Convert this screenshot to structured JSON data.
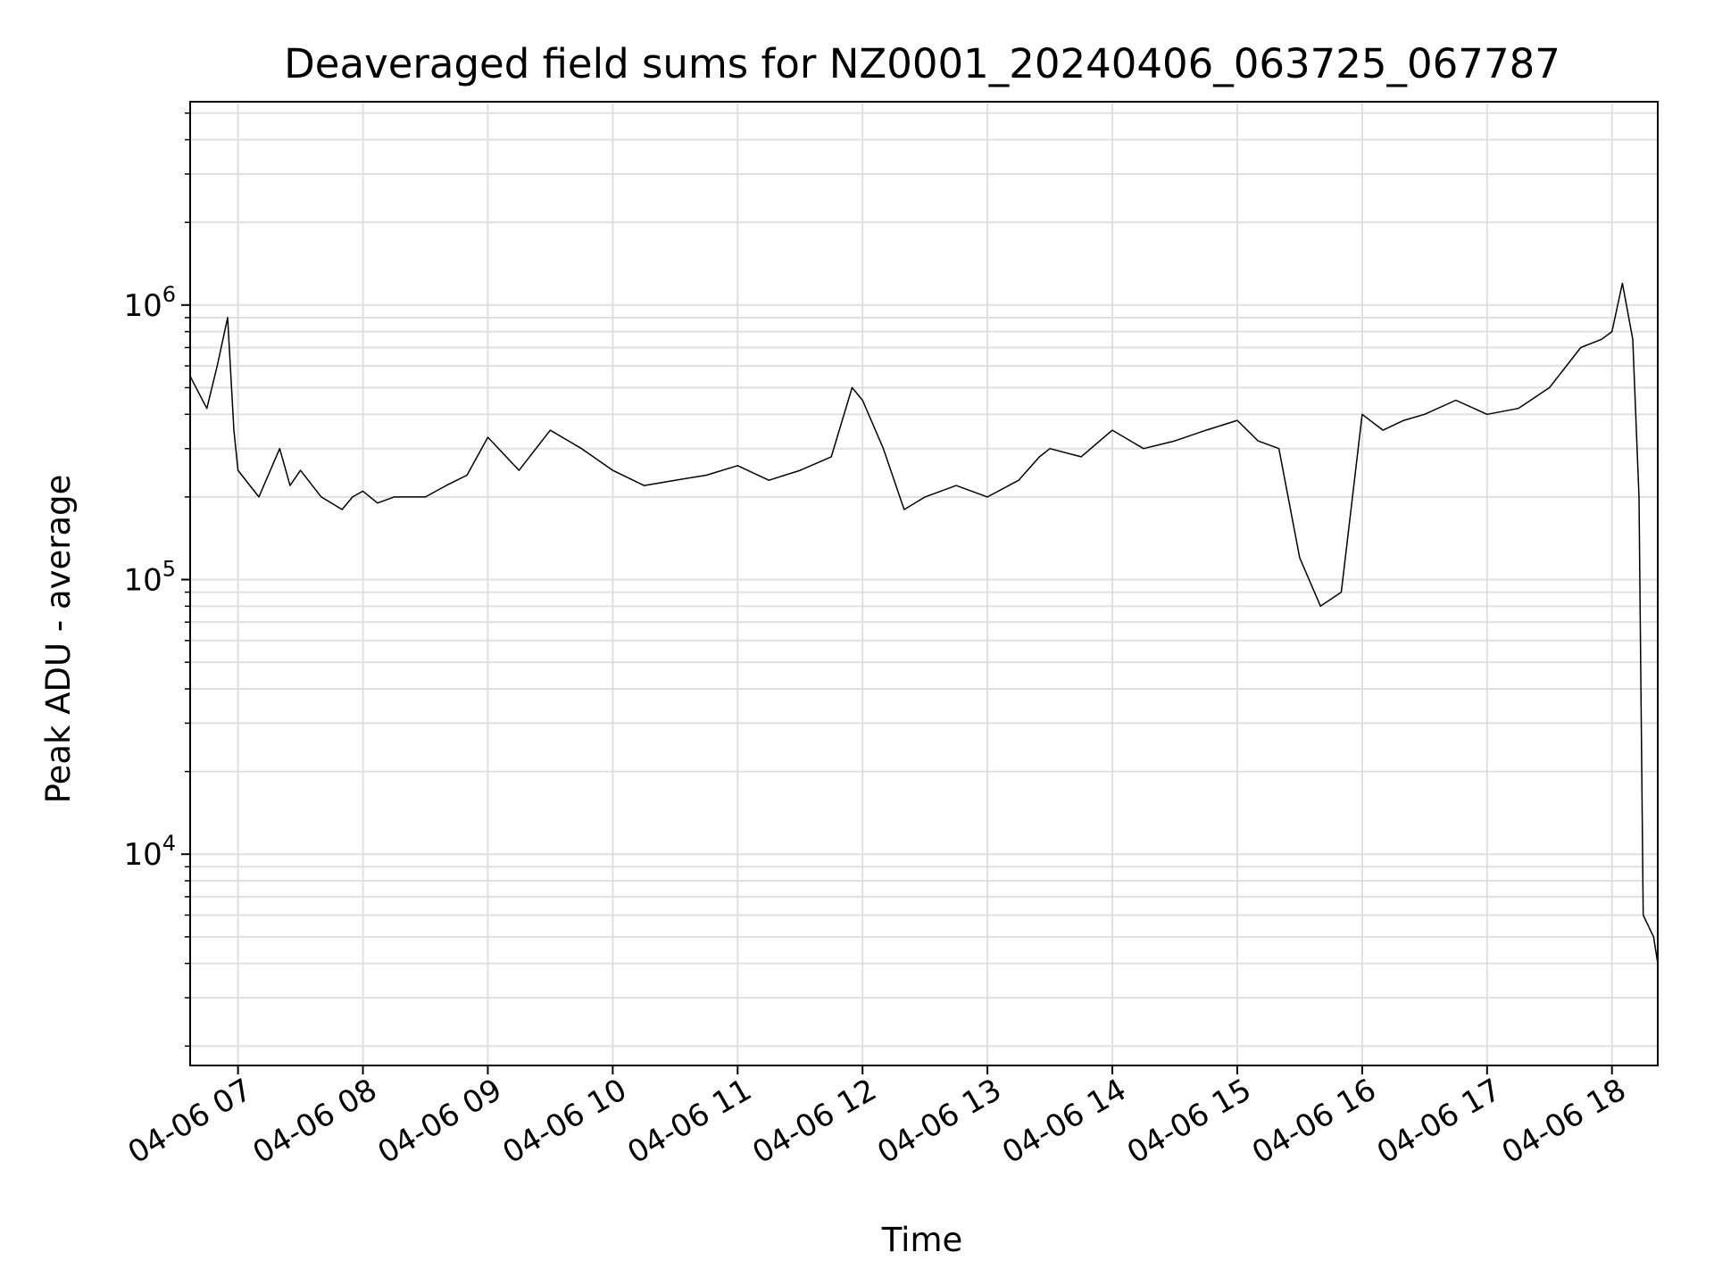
{
  "chart_data": {
    "type": "line",
    "title": "Deaveraged field sums for NZ0001_20240406_063725_067787",
    "xlabel": "Time",
    "ylabel": "Peak ADU - average",
    "yscale": "log",
    "grid": true,
    "legend": "none",
    "line_color": "#000000",
    "xlim": [
      "2024-04-06 06:37",
      "2024-04-06 18:22"
    ],
    "ylim": [
      1700,
      5500000
    ],
    "xticks": [
      {
        "value": "2024-04-06 07:00",
        "label": "04-06 07"
      },
      {
        "value": "2024-04-06 08:00",
        "label": "04-06 08"
      },
      {
        "value": "2024-04-06 09:00",
        "label": "04-06 09"
      },
      {
        "value": "2024-04-06 10:00",
        "label": "04-06 10"
      },
      {
        "value": "2024-04-06 11:00",
        "label": "04-06 11"
      },
      {
        "value": "2024-04-06 12:00",
        "label": "04-06 12"
      },
      {
        "value": "2024-04-06 13:00",
        "label": "04-06 13"
      },
      {
        "value": "2024-04-06 14:00",
        "label": "04-06 14"
      },
      {
        "value": "2024-04-06 15:00",
        "label": "04-06 15"
      },
      {
        "value": "2024-04-06 16:00",
        "label": "04-06 16"
      },
      {
        "value": "2024-04-06 17:00",
        "label": "04-06 17"
      },
      {
        "value": "2024-04-06 18:00",
        "label": "04-06 18"
      }
    ],
    "yticks": [
      {
        "value": 10000,
        "base": "10",
        "exp": "4"
      },
      {
        "value": 100000,
        "base": "10",
        "exp": "5"
      },
      {
        "value": 1000000,
        "base": "10",
        "exp": "6"
      }
    ],
    "series": [
      {
        "x": [
          "2024-04-06 06:37",
          "2024-04-06 06:45",
          "2024-04-06 06:50",
          "2024-04-06 06:55",
          "2024-04-06 06:58",
          "2024-04-06 07:00",
          "2024-04-06 07:10",
          "2024-04-06 07:20",
          "2024-04-06 07:25",
          "2024-04-06 07:30",
          "2024-04-06 07:40",
          "2024-04-06 07:50",
          "2024-04-06 07:55",
          "2024-04-06 08:00",
          "2024-04-06 08:07",
          "2024-04-06 08:15",
          "2024-04-06 08:30",
          "2024-04-06 08:40",
          "2024-04-06 08:50",
          "2024-04-06 09:00",
          "2024-04-06 09:15",
          "2024-04-06 09:30",
          "2024-04-06 09:45",
          "2024-04-06 10:00",
          "2024-04-06 10:15",
          "2024-04-06 10:30",
          "2024-04-06 10:45",
          "2024-04-06 11:00",
          "2024-04-06 11:15",
          "2024-04-06 11:30",
          "2024-04-06 11:45",
          "2024-04-06 11:55",
          "2024-04-06 12:00",
          "2024-04-06 12:10",
          "2024-04-06 12:20",
          "2024-04-06 12:30",
          "2024-04-06 12:45",
          "2024-04-06 13:00",
          "2024-04-06 13:15",
          "2024-04-06 13:25",
          "2024-04-06 13:30",
          "2024-04-06 13:45",
          "2024-04-06 14:00",
          "2024-04-06 14:15",
          "2024-04-06 14:30",
          "2024-04-06 14:45",
          "2024-04-06 15:00",
          "2024-04-06 15:10",
          "2024-04-06 15:20",
          "2024-04-06 15:30",
          "2024-04-06 15:40",
          "2024-04-06 15:50",
          "2024-04-06 16:00",
          "2024-04-06 16:10",
          "2024-04-06 16:20",
          "2024-04-06 16:30",
          "2024-04-06 16:45",
          "2024-04-06 17:00",
          "2024-04-06 17:15",
          "2024-04-06 17:30",
          "2024-04-06 17:45",
          "2024-04-06 17:55",
          "2024-04-06 18:00",
          "2024-04-06 18:05",
          "2024-04-06 18:10",
          "2024-04-06 18:13",
          "2024-04-06 18:15",
          "2024-04-06 18:20",
          "2024-04-06 18:22"
        ],
        "values": [
          550000,
          420000,
          600000,
          900000,
          350000,
          250000,
          200000,
          300000,
          220000,
          250000,
          200000,
          180000,
          200000,
          210000,
          190000,
          200000,
          200000,
          220000,
          240000,
          330000,
          250000,
          350000,
          300000,
          250000,
          220000,
          230000,
          240000,
          260000,
          230000,
          250000,
          280000,
          500000,
          450000,
          300000,
          180000,
          200000,
          220000,
          200000,
          230000,
          280000,
          300000,
          280000,
          350000,
          300000,
          320000,
          350000,
          380000,
          320000,
          300000,
          120000,
          80000,
          90000,
          400000,
          350000,
          380000,
          400000,
          450000,
          400000,
          420000,
          500000,
          700000,
          750000,
          800000,
          1200000,
          750000,
          200000,
          6000,
          5000,
          4000
        ]
      }
    ]
  }
}
